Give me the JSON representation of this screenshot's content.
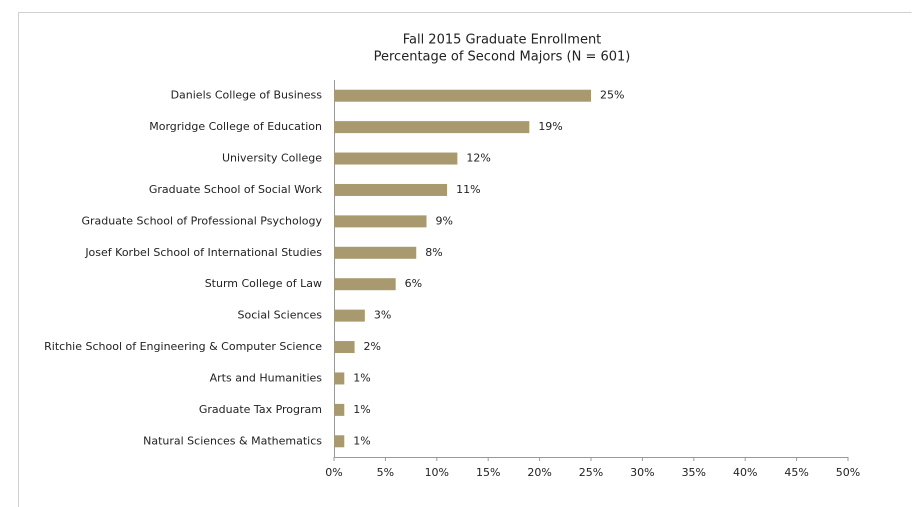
{
  "chart_data": {
    "type": "bar",
    "orientation": "horizontal",
    "title": "Fall 2015 Graduate Enrollment",
    "subtitle": "Percentage of Second Majors (N = 601)",
    "categories": [
      "Daniels College of Business",
      "Morgridge College of Education",
      "University College",
      "Graduate School of Social Work",
      "Graduate School of Professional Psychology",
      "Josef Korbel School of International Studies",
      "Sturm College of Law",
      "Social Sciences",
      "Ritchie School of Engineering & Computer Science",
      "Arts and Humanities",
      "Graduate Tax Program",
      "Natural Sciences & Mathematics"
    ],
    "values": [
      25,
      19,
      12,
      11,
      9,
      8,
      6,
      3,
      2,
      1,
      1,
      1
    ],
    "value_labels": [
      "25%",
      "19%",
      "12%",
      "11%",
      "9%",
      "8%",
      "6%",
      "3%",
      "2%",
      "1%",
      "1%",
      "1%"
    ],
    "color": "#a89a6e",
    "xlim": [
      0,
      50
    ],
    "xticks": [
      {
        "value": 0,
        "label": "0%"
      },
      {
        "value": 5,
        "label": "5%"
      },
      {
        "value": 10,
        "label": "10%"
      },
      {
        "value": 15,
        "label": "15%"
      },
      {
        "value": 20,
        "label": "20%"
      },
      {
        "value": 25,
        "label": "25%"
      },
      {
        "value": 30,
        "label": "30%"
      },
      {
        "value": 35,
        "label": "35%"
      },
      {
        "value": 40,
        "label": "40%"
      },
      {
        "value": 45,
        "label": "45%"
      },
      {
        "value": 50,
        "label": "50%"
      }
    ],
    "grid": false
  }
}
